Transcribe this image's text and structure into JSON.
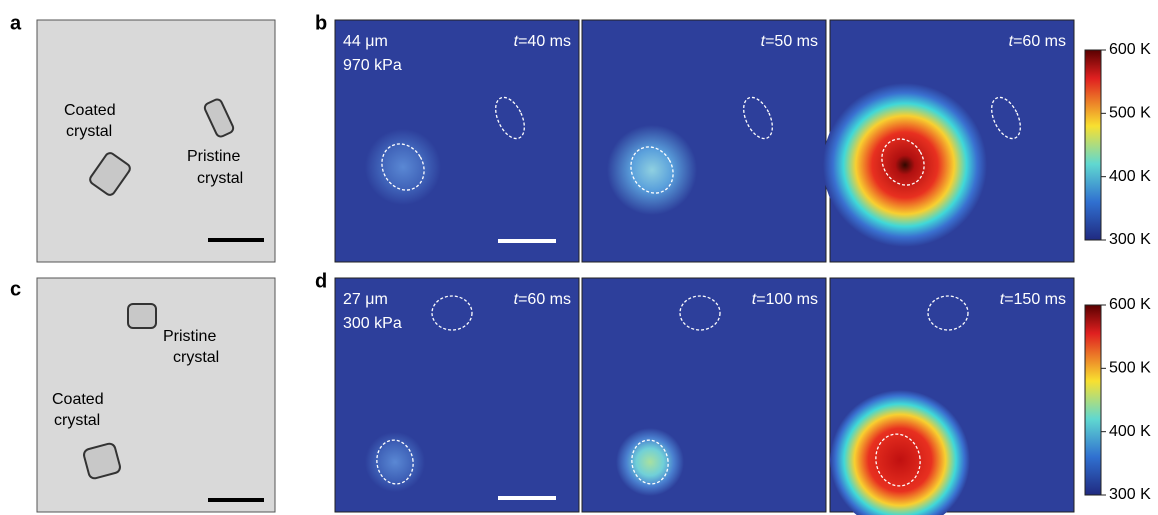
{
  "panel_a": {
    "label": "a",
    "coated": [
      "Coated",
      "crystal"
    ],
    "pristine": [
      "Pristine",
      "crystal"
    ]
  },
  "panel_b": {
    "label": "b",
    "size": "44 μm",
    "pressure": "970 kPa",
    "frames": [
      {
        "var": "t",
        "time": "=40 ms"
      },
      {
        "var": "t",
        "time": "=50 ms"
      },
      {
        "var": "t",
        "time": "=60 ms"
      }
    ],
    "colorbar": [
      "600 K",
      "500 K",
      "400 K",
      "300 K"
    ]
  },
  "panel_c": {
    "label": "c",
    "coated": [
      "Coated",
      "crystal"
    ],
    "pristine": [
      "Pristine",
      "crystal"
    ]
  },
  "panel_d": {
    "label": "d",
    "size": "27 μm",
    "pressure": "300 kPa",
    "frames": [
      {
        "var": "t",
        "time": "=60 ms"
      },
      {
        "var": "t",
        "time": "=100 ms"
      },
      {
        "var": "t",
        "time": "=150 ms"
      }
    ],
    "colorbar": [
      "600 K",
      "500 K",
      "400 K",
      "300 K"
    ]
  }
}
